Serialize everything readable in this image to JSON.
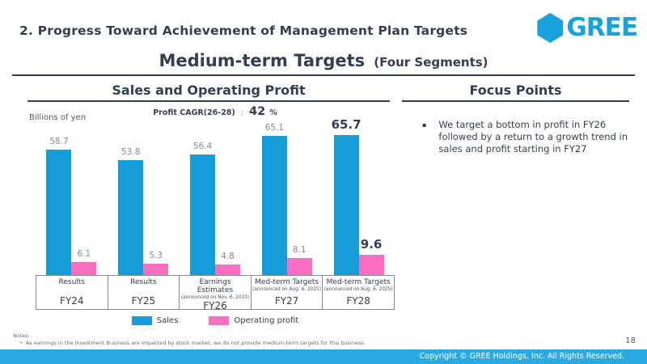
{
  "header": {
    "title": "2. Progress Toward Achievement of Management Plan Targets",
    "logo_text": "GREE",
    "subtitle": "Medium-term Targets",
    "subtitle_suffix": "(Four Segments)"
  },
  "chart_panel": {
    "title": "Sales and Operating Profit",
    "unit_label": "Billions of yen",
    "cagr_label": "Profit CAGR(26-28)",
    "cagr_separator": ":",
    "cagr_value": "42",
    "cagr_unit": "%"
  },
  "chart_data": {
    "type": "bar",
    "title": "Sales and Operating Profit",
    "ylabel": "Billions of yen",
    "ylim": [
      0,
      72
    ],
    "grid": false,
    "legend_position": "bottom",
    "categories": [
      {
        "label": "Results",
        "note": "",
        "fiscal_year": "FY24"
      },
      {
        "label": "Results",
        "note": "",
        "fiscal_year": "FY25"
      },
      {
        "label": "Earnings Estimates",
        "note": "(announced on Nov. 6, 2025)",
        "fiscal_year": "FY26"
      },
      {
        "label": "Med-term Targets",
        "note": "(announced on Aug. 6, 2025)",
        "fiscal_year": "FY27"
      },
      {
        "label": "Med-term Targets",
        "note": "(announced on Aug. 6, 2025)",
        "fiscal_year": "FY28"
      }
    ],
    "series": [
      {
        "name": "Sales",
        "color": "#149DD9",
        "values": [
          58.7,
          53.8,
          56.4,
          65.1,
          65.7
        ]
      },
      {
        "name": "Operating profit",
        "color": "#F96EC1",
        "values": [
          6.1,
          5.3,
          4.8,
          8.1,
          9.6
        ]
      }
    ],
    "emphasized_category_index": 4
  },
  "focus_panel": {
    "title": "Focus Points",
    "bullets": [
      "We target a bottom in profit in FY26 followed by a return to a growth trend in sales and profit starting in FY27"
    ]
  },
  "notes": {
    "label": "Notes:",
    "items": [
      "As earnings in the Investment Business are impacted by stock market, we do not provide medium-term targets for this business."
    ]
  },
  "footer": {
    "page_number": "18",
    "copyright": "Copyright © GREE Holdings, Inc. All Rights Reserved."
  },
  "colors": {
    "sales": "#149DD9",
    "operating_profit": "#F96EC1",
    "accent_navy": "#333F50",
    "footer_bar": "#29ABE2",
    "logo": "#17A2DC"
  }
}
